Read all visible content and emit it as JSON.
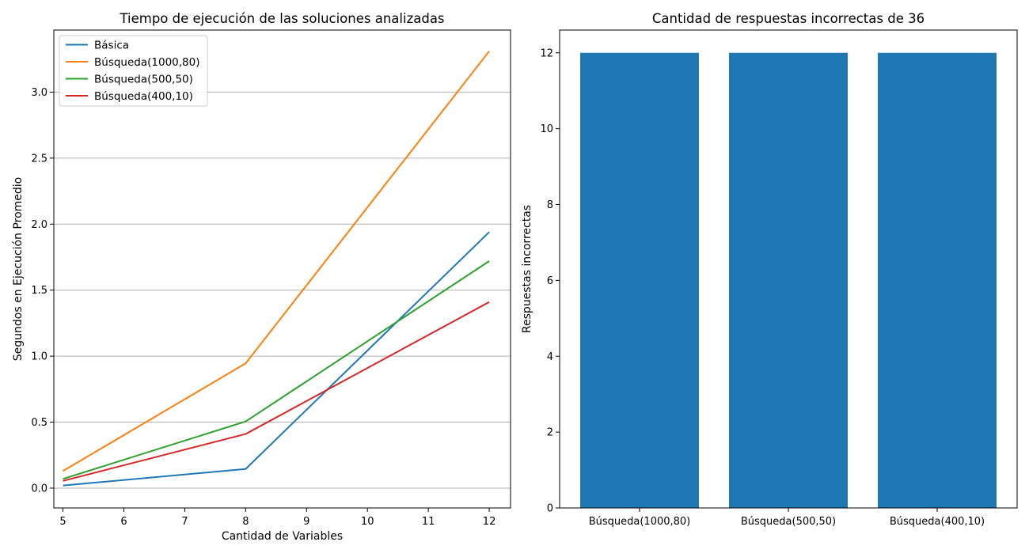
{
  "chart_data": [
    {
      "type": "line",
      "title": "Tiempo de ejecución de las soluciones analizadas",
      "xlabel": "Cantidad de Variables",
      "ylabel": "Segundos en Ejecución Promedio",
      "xlim": [
        4.85,
        12.35
      ],
      "ylim": [
        -0.15,
        3.47
      ],
      "xticks": [
        5,
        6,
        7,
        8,
        9,
        10,
        11,
        12
      ],
      "yticks": [
        0.0,
        0.5,
        1.0,
        1.5,
        2.0,
        2.5,
        3.0
      ],
      "ytick_labels": [
        "0.0",
        "0.5",
        "1.0",
        "1.5",
        "2.0",
        "2.5",
        "3.0"
      ],
      "grid": "y",
      "legend_position": "top-left",
      "x": [
        5,
        8,
        12
      ],
      "series": [
        {
          "name": "Básica",
          "color": "#1f77b4",
          "values": [
            0.02,
            0.145,
            1.94
          ]
        },
        {
          "name": "Búsqueda(1000,80)",
          "color": "#ff7f0e",
          "values": [
            0.13,
            0.945,
            3.31
          ]
        },
        {
          "name": "Búsqueda(500,50)",
          "color": "#2ca02c",
          "values": [
            0.07,
            0.505,
            1.72
          ]
        },
        {
          "name": "Búsqueda(400,10)",
          "color": "#d62728",
          "values": [
            0.055,
            0.41,
            1.41
          ]
        }
      ]
    },
    {
      "type": "bar",
      "title": "Cantidad de respuestas incorrectas de 36",
      "xlabel": "",
      "ylabel": "Respuestas incorrectas",
      "ylim": [
        0,
        12.6
      ],
      "yticks": [
        0,
        2,
        4,
        6,
        8,
        10,
        12
      ],
      "grid": "none",
      "color": "#1f77b4",
      "categories": [
        "Búsqueda(1000,80)",
        "Búsqueda(500,50)",
        "Búsqueda(400,10)"
      ],
      "values": [
        12,
        12,
        12
      ]
    }
  ]
}
